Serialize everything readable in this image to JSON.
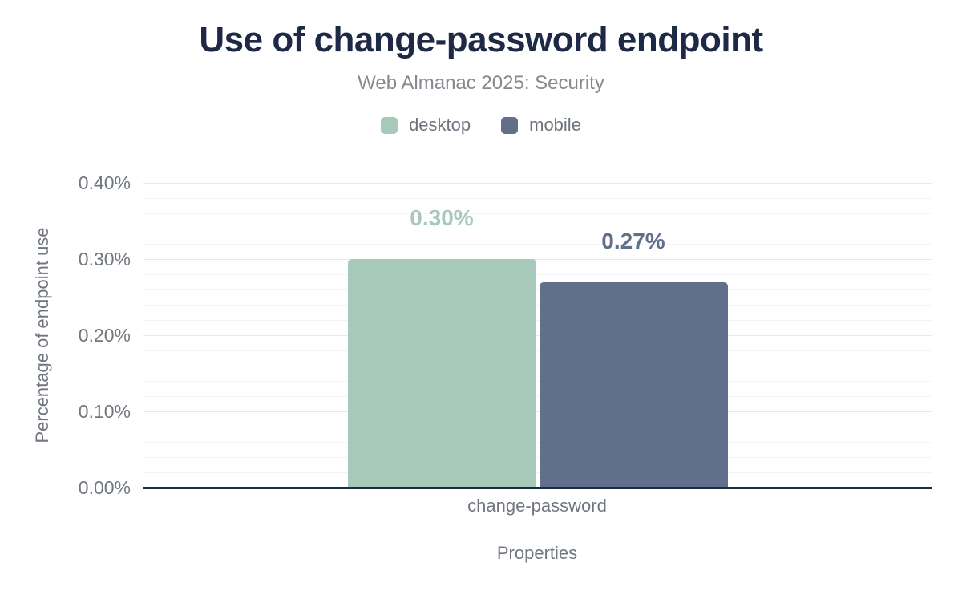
{
  "header": {
    "title": "Use of change-password endpoint",
    "subtitle": "Web Almanac 2025: Security"
  },
  "legend": [
    {
      "label": "desktop",
      "color": "#a6c9ba"
    },
    {
      "label": "mobile",
      "color": "#60708b"
    }
  ],
  "chart_data": {
    "type": "bar",
    "title": "Use of change-password endpoint",
    "subtitle": "Web Almanac 2025: Security",
    "categories": [
      "change-password"
    ],
    "series": [
      {
        "name": "desktop",
        "values": [
          0.3
        ],
        "data_labels": [
          "0.30%"
        ],
        "color": "#a6c9ba"
      },
      {
        "name": "mobile",
        "values": [
          0.27
        ],
        "data_labels": [
          "0.27%"
        ],
        "color": "#60708b"
      }
    ],
    "xlabel": "Properties",
    "ylabel": "Percentage of endpoint use",
    "ylim": [
      0,
      0.4
    ],
    "ytick_step": 0.1,
    "yminor_step": 0.02,
    "yticks": [
      "0.00%",
      "0.10%",
      "0.20%",
      "0.30%",
      "0.40%"
    ],
    "grid": true,
    "legend_position": "top"
  },
  "colors": {
    "background": "#ffffff",
    "title_text": "#1e2a45",
    "subtitle_text": "#85898f",
    "axis_text": "#71777f",
    "legend_text": "#6d737d",
    "baseline": "#1e2a40",
    "grid_major": "#e9e9eb",
    "grid_minor": "#f4f4f6"
  }
}
